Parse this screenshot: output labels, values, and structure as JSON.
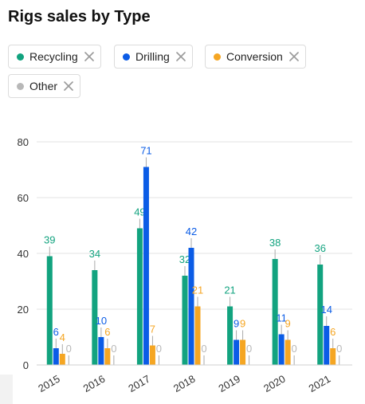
{
  "title": "Rigs sales by Type",
  "legend": [
    {
      "label": "Recycling",
      "color": "#12a37f"
    },
    {
      "label": "Drilling",
      "color": "#0b5ce6"
    },
    {
      "label": "Conversion",
      "color": "#f5a623"
    },
    {
      "label": "Other",
      "color": "#b8b8b8"
    }
  ],
  "chart_data": {
    "type": "bar",
    "title": "Rigs sales by Type",
    "categories": [
      "2015",
      "2016",
      "2017",
      "2018",
      "2019",
      "2020",
      "2021"
    ],
    "series": [
      {
        "name": "Recycling",
        "values": [
          39,
          34,
          49,
          32,
          21,
          38,
          36
        ],
        "color": "#12a37f"
      },
      {
        "name": "Drilling",
        "values": [
          6,
          10,
          71,
          42,
          9,
          11,
          14
        ],
        "color": "#0b5ce6"
      },
      {
        "name": "Conversion",
        "values": [
          4,
          6,
          7,
          21,
          9,
          9,
          6
        ],
        "color": "#f5a623"
      },
      {
        "name": "Other",
        "values": [
          0,
          0,
          0,
          0,
          0,
          0,
          0
        ],
        "color": "#b8b8b8"
      }
    ],
    "ylim": [
      0,
      80
    ],
    "yticks": [
      0,
      20,
      40,
      60,
      80
    ],
    "grid": true,
    "xlabel": "",
    "ylabel": ""
  }
}
